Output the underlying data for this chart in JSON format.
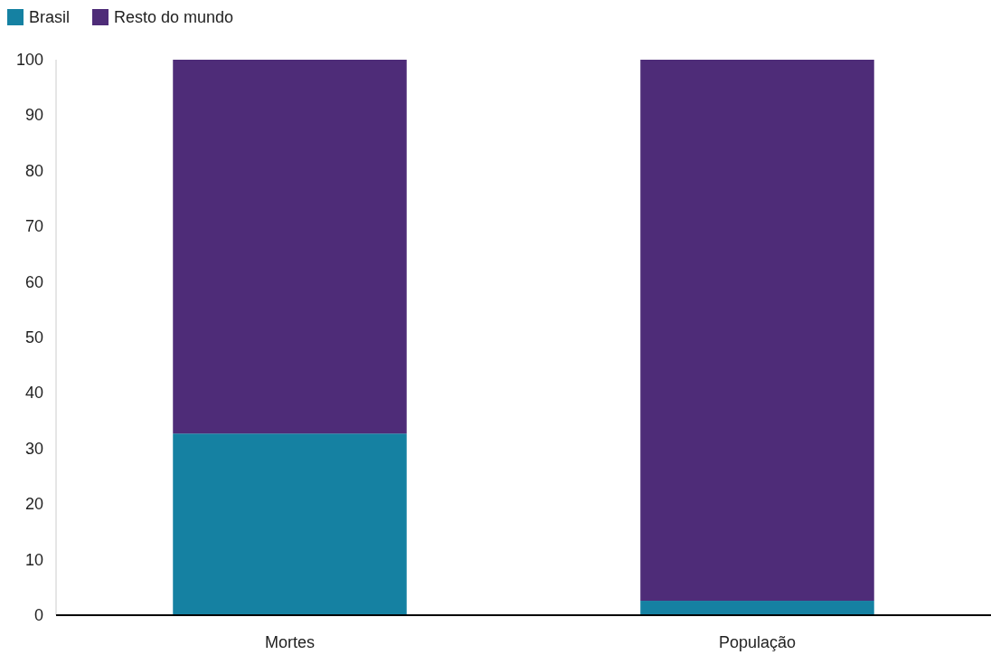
{
  "chart_data": {
    "type": "bar",
    "stacked": true,
    "categories": [
      "Mortes",
      "População"
    ],
    "series": [
      {
        "name": "Brasil",
        "color": "#1581a2",
        "values": [
          32.7,
          2.6
        ]
      },
      {
        "name": "Resto do mundo",
        "color": "#4e2c78",
        "values": [
          67.3,
          97.4
        ]
      }
    ],
    "ylim": [
      0,
      100
    ],
    "yticks": [
      0,
      10,
      20,
      30,
      40,
      50,
      60,
      70,
      80,
      90,
      100
    ],
    "grid": false,
    "legend": "top left"
  }
}
